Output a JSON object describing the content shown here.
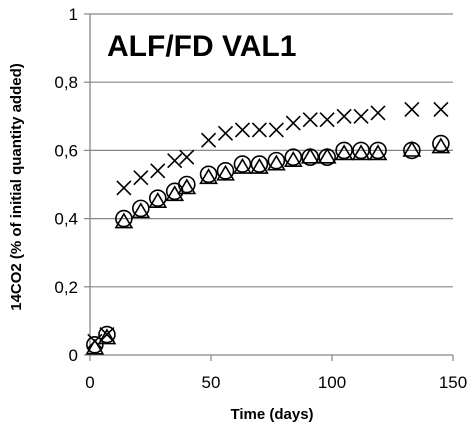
{
  "chart_data": {
    "type": "scatter",
    "title": "ALF/FD VAL1",
    "xlabel": "Time (days)",
    "ylabel": "14CO2 (% of initial quantity added)",
    "xlim": [
      0,
      150
    ],
    "ylim": [
      0,
      1
    ],
    "xticks": [
      0,
      50,
      100,
      150
    ],
    "yticks": [
      0,
      0.2,
      0.4,
      0.6,
      0.8,
      1
    ],
    "ytick_labels": [
      "0",
      "0,2",
      "0,4",
      "0,6",
      "0,8",
      "1"
    ],
    "xtick_labels": [
      "0",
      "50",
      "100",
      "150"
    ],
    "grid": "horizontal",
    "legend": "none",
    "series": [
      {
        "marker": "cross",
        "x": [
          2,
          7,
          14,
          21,
          28,
          35,
          40,
          49,
          56,
          63,
          70,
          77,
          84,
          91,
          98,
          105,
          112,
          119,
          133,
          145
        ],
        "y": [
          0.04,
          0.06,
          0.49,
          0.52,
          0.54,
          0.57,
          0.58,
          0.63,
          0.65,
          0.66,
          0.66,
          0.66,
          0.68,
          0.69,
          0.69,
          0.7,
          0.7,
          0.71,
          0.72,
          0.72
        ]
      },
      {
        "marker": "circle",
        "x": [
          2,
          7,
          14,
          21,
          28,
          35,
          40,
          49,
          56,
          63,
          70,
          77,
          84,
          91,
          98,
          105,
          112,
          119,
          133,
          145
        ],
        "y": [
          0.03,
          0.06,
          0.4,
          0.43,
          0.46,
          0.48,
          0.5,
          0.53,
          0.54,
          0.56,
          0.56,
          0.57,
          0.58,
          0.58,
          0.58,
          0.6,
          0.6,
          0.6,
          0.6,
          0.62
        ]
      },
      {
        "marker": "triangle",
        "x": [
          2,
          7,
          14,
          21,
          28,
          35,
          40,
          49,
          56,
          63,
          70,
          77,
          84,
          91,
          98,
          105,
          112,
          119,
          133,
          145
        ],
        "y": [
          0.02,
          0.05,
          0.39,
          0.42,
          0.45,
          0.47,
          0.49,
          0.52,
          0.53,
          0.55,
          0.55,
          0.56,
          0.57,
          0.58,
          0.58,
          0.59,
          0.59,
          0.59,
          0.6,
          0.61
        ]
      }
    ]
  }
}
